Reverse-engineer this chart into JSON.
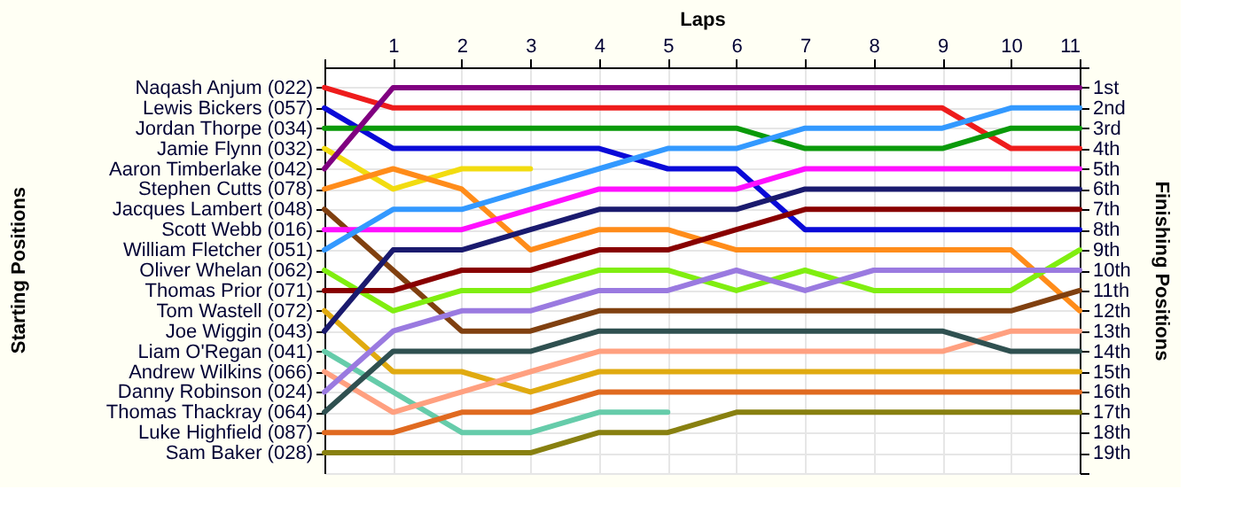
{
  "chart_data": {
    "type": "line",
    "xlabel": "Laps",
    "annotations": [
      "Starting Positions"
    ],
    "y2label": "Finishing Positions",
    "x": [
      0,
      1,
      2,
      3,
      4,
      5,
      6,
      7,
      8,
      9,
      10,
      11
    ],
    "xlim": [
      0,
      11
    ],
    "xticks": [
      {
        "value": 0,
        "label": null
      },
      1,
      2,
      3,
      4,
      5,
      6,
      7,
      8,
      9,
      10,
      11
    ],
    "y2lim": [
      20,
      0
    ],
    "y2ticks": [
      {
        "value": 0,
        "label": null
      },
      {
        "value": 1,
        "label": "1st"
      },
      {
        "value": 2,
        "label": "2nd"
      },
      {
        "value": 3,
        "label": "3rd"
      },
      {
        "value": 4,
        "label": "4th"
      },
      {
        "value": 5,
        "label": "5th"
      },
      {
        "value": 6,
        "label": "6th"
      },
      {
        "value": 7,
        "label": "7th"
      },
      {
        "value": 8,
        "label": "8th"
      },
      {
        "value": 9,
        "label": "9th"
      },
      {
        "value": 10,
        "label": "10th"
      },
      {
        "value": 11,
        "label": "11th"
      },
      {
        "value": 12,
        "label": "12th"
      },
      {
        "value": 13,
        "label": "13th"
      },
      {
        "value": 14,
        "label": "14th"
      },
      {
        "value": 15,
        "label": "15th"
      },
      {
        "value": 16,
        "label": "16th"
      },
      {
        "value": 17,
        "label": "17th"
      },
      {
        "value": 18,
        "label": "18th"
      },
      {
        "value": 19,
        "label": "19th"
      },
      {
        "value": 20,
        "label": null
      }
    ],
    "grid": true,
    "legend": false,
    "marker": "none",
    "line_style": "solid",
    "series": [
      {
        "name": "Naqash Anjum (022)",
        "axis": "y2",
        "color": "#ee1c1c",
        "values": [
          1,
          2,
          2,
          2,
          2,
          2,
          2,
          2,
          2,
          2,
          4,
          4
        ]
      },
      {
        "name": "Lewis Bickers (057)",
        "axis": "y2",
        "color": "#0a0ad8",
        "values": [
          2,
          4,
          4,
          4,
          4,
          5,
          5,
          8,
          8,
          8,
          8,
          8
        ]
      },
      {
        "name": "Jordan Thorpe (034)",
        "axis": "y2",
        "color": "#0a9a0a",
        "values": [
          3,
          3,
          3,
          3,
          3,
          3,
          3,
          4,
          4,
          4,
          3,
          3
        ]
      },
      {
        "name": "Jamie Flynn (032)",
        "axis": "y2",
        "color": "#f2dc10",
        "values": [
          4,
          6,
          5,
          5,
          null,
          null,
          null,
          null,
          null,
          null,
          null,
          null
        ]
      },
      {
        "name": "Aaron Timberlake (042)",
        "axis": "y2",
        "color": "#800080",
        "values": [
          5,
          1,
          1,
          1,
          1,
          1,
          1,
          1,
          1,
          1,
          1,
          1
        ]
      },
      {
        "name": "Stephen Cutts (078)",
        "axis": "y2",
        "color": "#ff8c1a",
        "values": [
          6,
          5,
          6,
          9,
          8,
          8,
          9,
          9,
          9,
          9,
          9,
          12
        ]
      },
      {
        "name": "Jacques Lambert (048)",
        "axis": "y2",
        "color": "#804010",
        "values": [
          7,
          10,
          13,
          13,
          12,
          12,
          12,
          12,
          12,
          12,
          12,
          11
        ]
      },
      {
        "name": "Scott Webb (016)",
        "axis": "y2",
        "color": "#ff10ff",
        "values": [
          8,
          8,
          8,
          7,
          6,
          6,
          6,
          5,
          5,
          5,
          5,
          5
        ]
      },
      {
        "name": "William Fletcher (051)",
        "axis": "y2",
        "color": "#3399ff",
        "values": [
          9,
          7,
          7,
          6,
          5,
          4,
          4,
          3,
          3,
          3,
          2,
          2
        ]
      },
      {
        "name": "Oliver Whelan (062)",
        "axis": "y2",
        "color": "#80ee10",
        "values": [
          10,
          12,
          11,
          11,
          10,
          10,
          11,
          10,
          11,
          11,
          11,
          9
        ]
      },
      {
        "name": "Thomas Prior (071)",
        "axis": "y2",
        "color": "#880000",
        "values": [
          11,
          11,
          10,
          10,
          9,
          9,
          8,
          7,
          7,
          7,
          7,
          7
        ]
      },
      {
        "name": "Tom Wastell (072)",
        "axis": "y2",
        "color": "#e0aa10",
        "values": [
          12,
          15,
          15,
          16,
          15,
          15,
          15,
          15,
          15,
          15,
          15,
          15
        ]
      },
      {
        "name": "Joe Wiggin (043)",
        "axis": "y2",
        "color": "#1a1a6e",
        "values": [
          13,
          9,
          9,
          8,
          7,
          7,
          7,
          6,
          6,
          6,
          6,
          6
        ]
      },
      {
        "name": "Liam O'Regan (041)",
        "axis": "y2",
        "color": "#66ccaa",
        "values": [
          14,
          16,
          18,
          18,
          17,
          17,
          null,
          null,
          null,
          null,
          null,
          null
        ]
      },
      {
        "name": "Andrew Wilkins (066)",
        "axis": "y2",
        "color": "#ffa080",
        "values": [
          15,
          17,
          16,
          15,
          14,
          14,
          14,
          14,
          14,
          14,
          13,
          13
        ]
      },
      {
        "name": "Danny Robinson (024)",
        "axis": "y2",
        "color": "#9a7ae0",
        "values": [
          16,
          13,
          12,
          12,
          11,
          11,
          10,
          11,
          10,
          10,
          10,
          10
        ]
      },
      {
        "name": "Thomas Thackray (064)",
        "axis": "y2",
        "color": "#2f5050",
        "values": [
          17,
          14,
          14,
          14,
          13,
          13,
          13,
          13,
          13,
          13,
          14,
          14
        ]
      },
      {
        "name": "Luke Highfield (087)",
        "axis": "y2",
        "color": "#e06a20",
        "values": [
          18,
          18,
          17,
          17,
          16,
          16,
          16,
          16,
          16,
          16,
          16,
          16
        ]
      },
      {
        "name": "Sam Baker (028)",
        "axis": "y2",
        "color": "#888010",
        "values": [
          19,
          19,
          19,
          19,
          18,
          18,
          17,
          17,
          17,
          17,
          17,
          17
        ]
      }
    ]
  }
}
